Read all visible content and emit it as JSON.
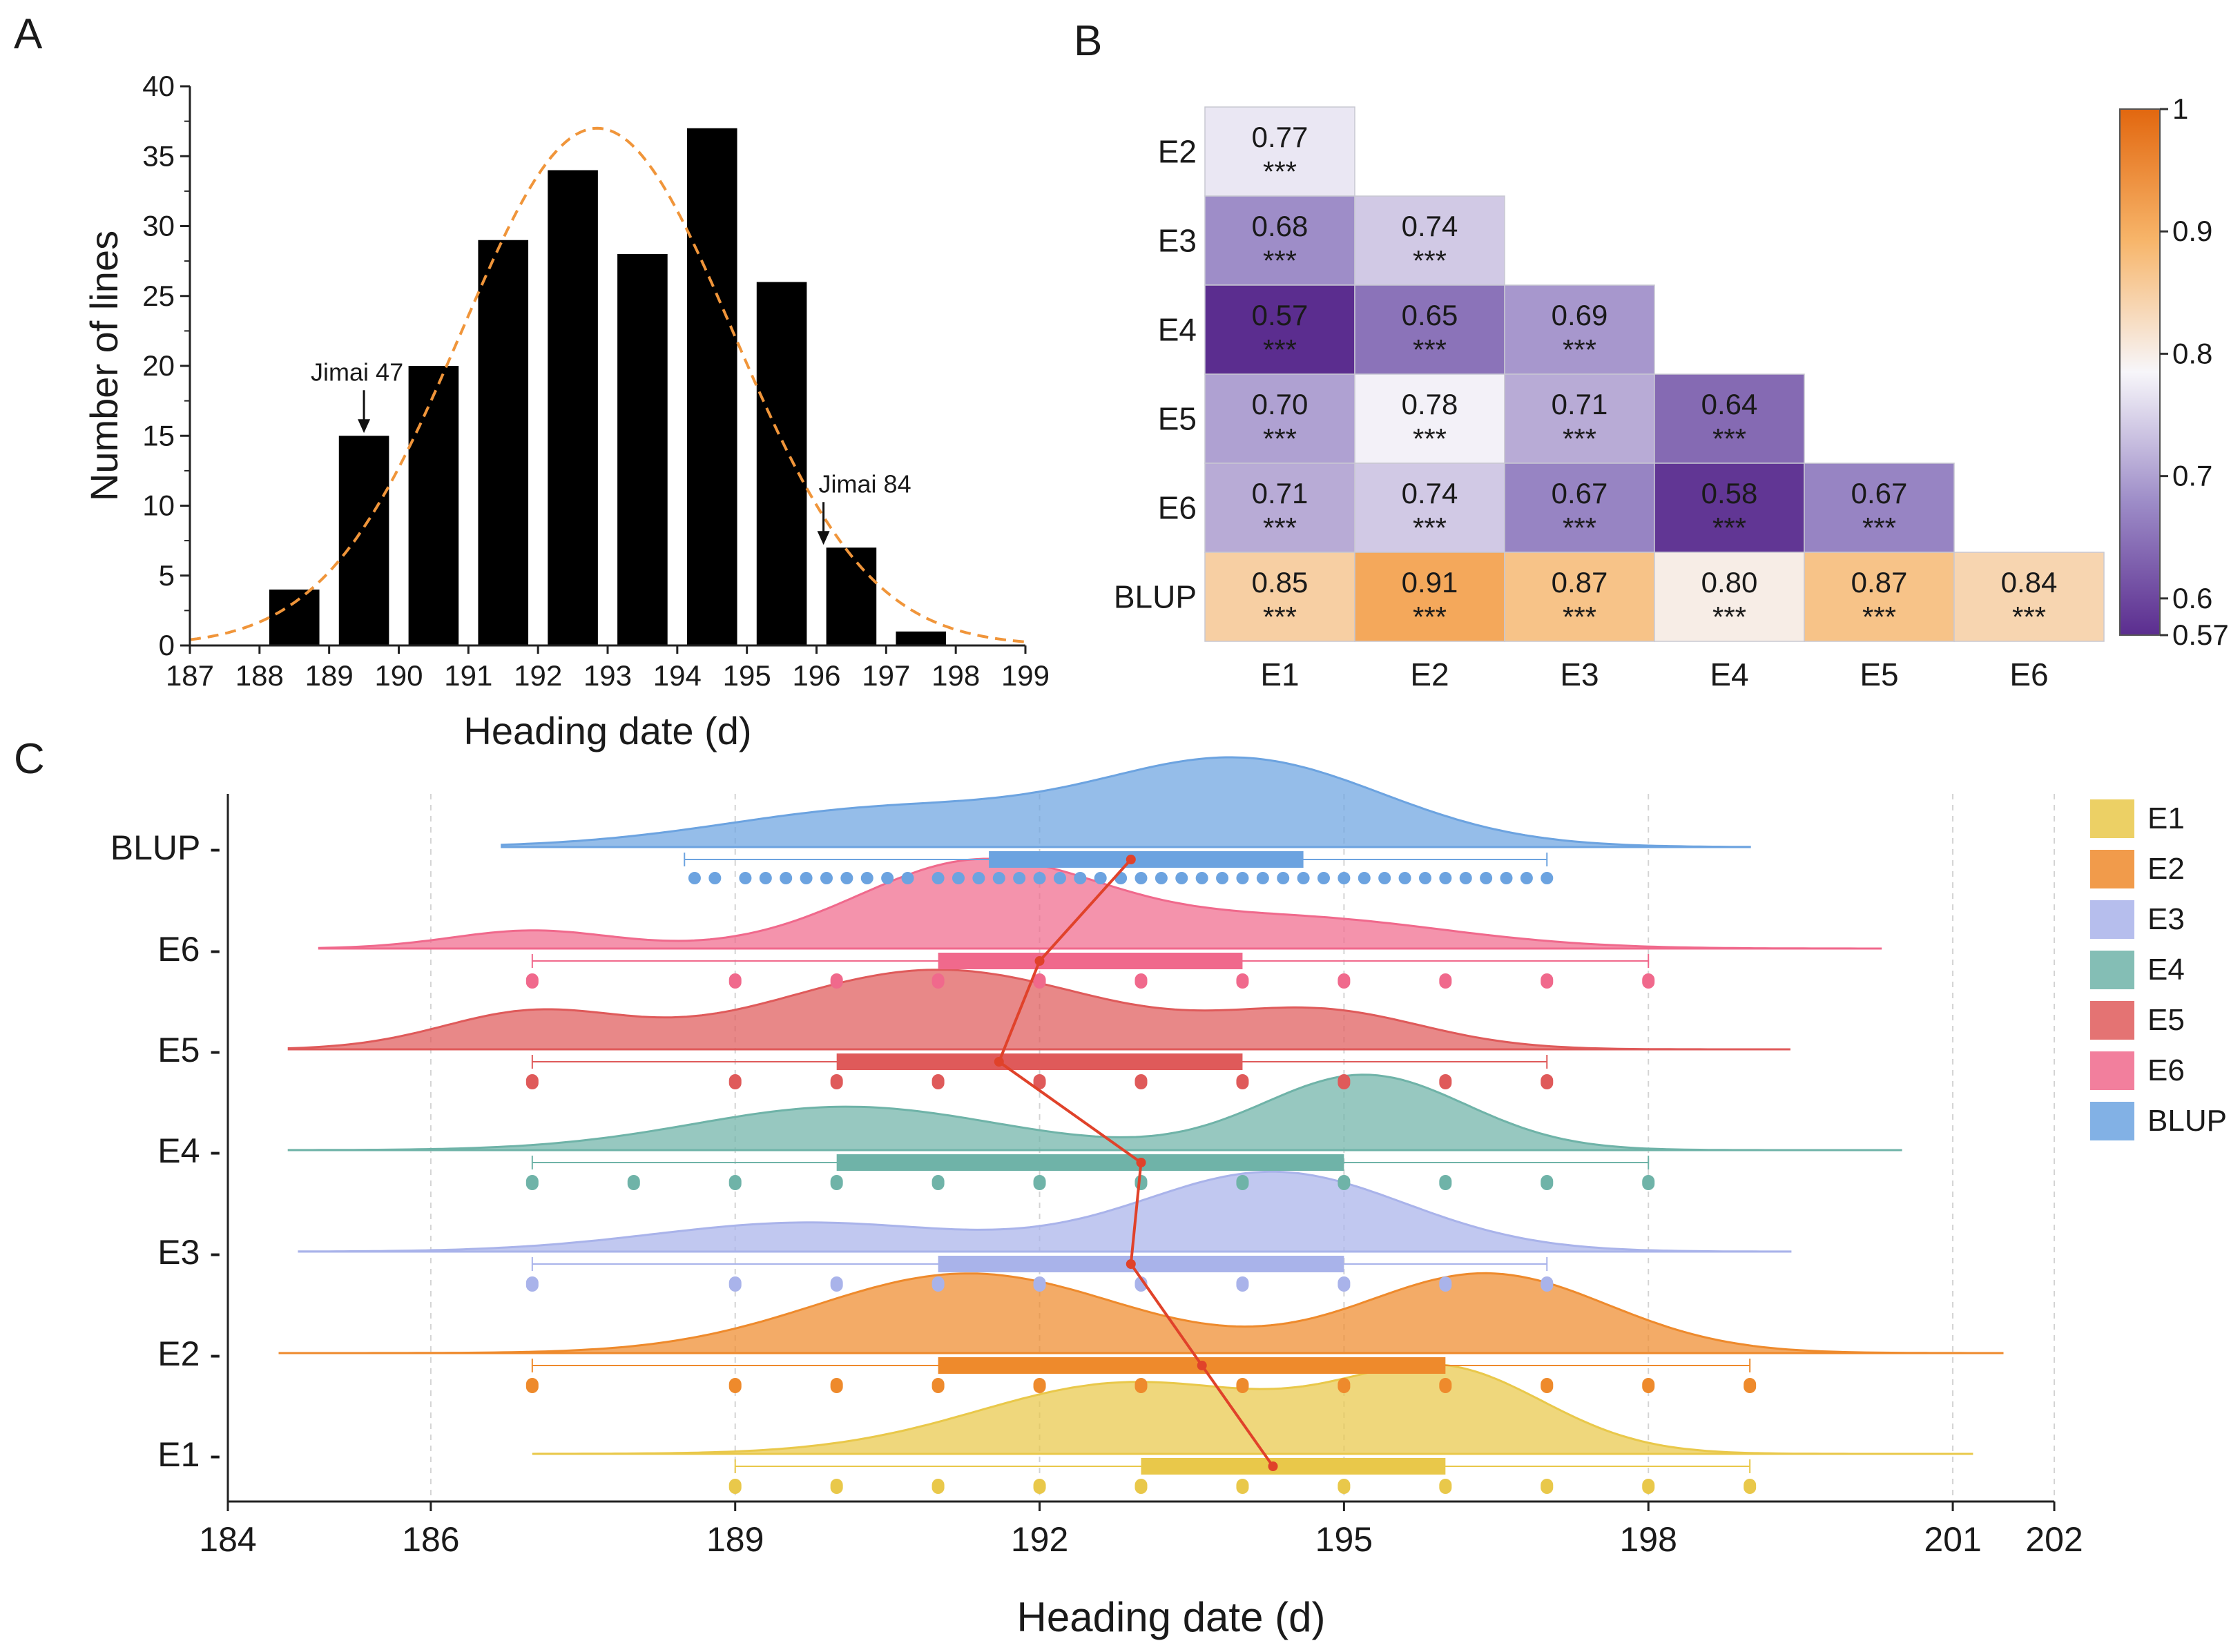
{
  "panels": {
    "a": "A",
    "b": "B",
    "c": "C"
  },
  "chart_data": [
    {
      "id": "A",
      "type": "bar",
      "title": "",
      "xlabel": "Heading date (d)",
      "ylabel": "Number of lines",
      "xlim": [
        187,
        199
      ],
      "ylim": [
        0,
        40
      ],
      "xticks": [
        "187",
        "188",
        "189",
        "190",
        "191",
        "192",
        "193",
        "194",
        "195",
        "196",
        "197",
        "198",
        "199"
      ],
      "yticks": [
        "0",
        "5",
        "10",
        "15",
        "20",
        "25",
        "30",
        "35",
        "40"
      ],
      "x": [
        188.5,
        189.5,
        190.5,
        191.5,
        192.5,
        193.5,
        194.5,
        195.5,
        196.5,
        197.5
      ],
      "values": [
        4,
        15,
        20,
        29,
        34,
        28,
        37,
        26,
        7,
        1
      ],
      "normal_fit": {
        "mean": 192.85,
        "peak": 37,
        "sd": 1.95,
        "color": "#f0953a",
        "style": "dashed"
      },
      "annotations": [
        {
          "label": "Jimai 47",
          "x": 189.5,
          "value": 15
        },
        {
          "label": "Jimai 84",
          "x": 196.1,
          "value": 7
        }
      ],
      "colors": {
        "bar": "#000000"
      }
    },
    {
      "id": "B",
      "type": "heatmap",
      "row_labels": [
        "E2",
        "E3",
        "E4",
        "E5",
        "E6",
        "BLUP"
      ],
      "col_labels": [
        "E1",
        "E2",
        "E3",
        "E4",
        "E5",
        "E6"
      ],
      "values": [
        [
          "0.77"
        ],
        [
          "0.68",
          "0.74"
        ],
        [
          "0.57",
          "0.65",
          "0.69"
        ],
        [
          "0.70",
          "0.78",
          "0.71",
          "0.64"
        ],
        [
          "0.71",
          "0.74",
          "0.67",
          "0.58",
          "0.67"
        ],
        [
          "0.85",
          "0.91",
          "0.87",
          "0.80",
          "0.87",
          "0.84"
        ]
      ],
      "significance": "***",
      "colorbar": {
        "min": 0.57,
        "max": 1,
        "ticks": [
          "0.57",
          "0.6",
          "0.7",
          "0.8",
          "0.9",
          "1"
        ]
      },
      "colors": {
        "low": "#5b2d8f",
        "mid": "#f7f6fa",
        "high": "#e2670f"
      }
    },
    {
      "id": "C",
      "type": "raincloud",
      "xlabel": "Heading date (d)",
      "xlim": [
        184,
        202
      ],
      "xticks": [
        "184",
        "186",
        "189",
        "192",
        "195",
        "198",
        "201",
        "202"
      ],
      "series": [
        {
          "name": "E1",
          "color": "#e9c84a",
          "min": 189,
          "max": 199,
          "q1": 193,
          "q3": 196,
          "mean": 194.3,
          "kde_range": [
            187.0,
            201.2
          ],
          "modes": [
            [
              192.9,
              0.55,
              1.5
            ],
            [
              196.0,
              0.62,
              1.0
            ]
          ],
          "points": [
            189,
            190,
            191,
            192,
            193,
            194,
            195,
            196,
            197,
            198,
            199
          ]
        },
        {
          "name": "E2",
          "color": "#ee8a2c",
          "min": 187,
          "max": 199,
          "q1": 191,
          "q3": 196,
          "mean": 193.6,
          "kde_range": [
            184.5,
            201.5
          ],
          "modes": [
            [
              191.3,
              0.55,
              1.5
            ],
            [
              196.4,
              0.55,
              1.2
            ]
          ],
          "points": [
            187,
            189,
            190,
            191,
            192,
            193,
            194,
            195,
            196,
            197,
            198,
            199
          ]
        },
        {
          "name": "E3",
          "color": "#a9b3ea",
          "min": 187,
          "max": 197,
          "q1": 191,
          "q3": 195,
          "mean": 192.9,
          "kde_range": [
            184.7,
            199.4
          ],
          "modes": [
            [
              189.7,
              0.2,
              1.5
            ],
            [
              194.3,
              0.55,
              1.3
            ]
          ],
          "points": [
            187,
            189,
            190,
            191,
            192,
            193,
            194,
            195,
            196,
            197
          ]
        },
        {
          "name": "E4",
          "color": "#6fb3a8",
          "min": 187,
          "max": 198,
          "q1": 190,
          "q3": 195,
          "mean": 193.0,
          "kde_range": [
            184.6,
            200.5
          ],
          "modes": [
            [
              190.1,
              0.3,
              1.5
            ],
            [
              195.2,
              0.52,
              1.0
            ]
          ],
          "points": [
            187,
            188,
            189,
            190,
            191,
            192,
            193,
            194,
            195,
            196,
            197,
            198
          ]
        },
        {
          "name": "E5",
          "color": "#df5a5a",
          "min": 187,
          "max": 197,
          "q1": 190,
          "q3": 194,
          "mean": 191.6,
          "kde_range": [
            184.6,
            199.4
          ],
          "modes": [
            [
              187.0,
              0.25,
              0.9
            ],
            [
              191.0,
              0.55,
              1.6
            ],
            [
              194.8,
              0.25,
              1.0
            ]
          ],
          "points": [
            187,
            189,
            190,
            191,
            192,
            193,
            194,
            195,
            196,
            197
          ]
        },
        {
          "name": "E6",
          "color": "#f0698c",
          "min": 187,
          "max": 198,
          "q1": 191,
          "q3": 194,
          "mean": 192.0,
          "kde_range": [
            184.9,
            200.3
          ],
          "modes": [
            [
              187.0,
              0.13,
              0.8
            ],
            [
              191.4,
              0.62,
              1.2
            ],
            [
              194.5,
              0.22,
              1.5
            ]
          ],
          "points": [
            187,
            189,
            190,
            191,
            192,
            193,
            194,
            195,
            196,
            197,
            198
          ]
        },
        {
          "name": "BLUP",
          "color": "#6ca3e0",
          "min": 188.5,
          "max": 197,
          "q1": 191.5,
          "q3": 194.6,
          "mean": 192.9,
          "kde_range": [
            186.7,
            199.0
          ],
          "modes": [
            [
              190.5,
              0.3,
              1.6
            ],
            [
              194.0,
              0.68,
              1.4
            ]
          ],
          "points": [
            188.6,
            188.8,
            189.1,
            189.3,
            189.5,
            189.7,
            189.9,
            190.1,
            190.3,
            190.5,
            190.7,
            191.0,
            191.2,
            191.4,
            191.6,
            191.8,
            192.0,
            192.2,
            192.4,
            192.6,
            192.8,
            193.0,
            193.2,
            193.4,
            193.6,
            193.8,
            194.0,
            194.2,
            194.4,
            194.6,
            194.8,
            195.0,
            195.2,
            195.4,
            195.6,
            195.8,
            196.0,
            196.2,
            196.4,
            196.6,
            196.8,
            197.0
          ]
        }
      ],
      "legend": [
        "E1",
        "E2",
        "E3",
        "E4",
        "E5",
        "E6",
        "BLUP"
      ],
      "legend_position": "right",
      "mean_line_color": "#e0422a"
    }
  ]
}
